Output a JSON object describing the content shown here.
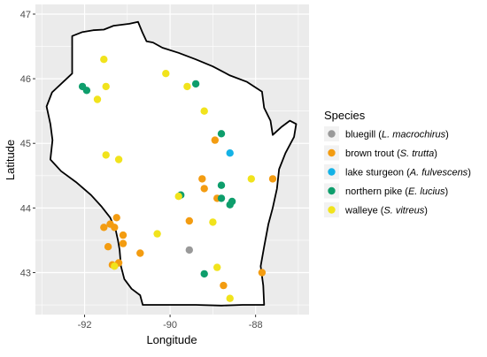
{
  "chart_data": {
    "type": "scatter",
    "title": "",
    "xlabel": "Longitude",
    "ylabel": "Latitude",
    "xlim": [
      -93.15,
      -86.75
    ],
    "ylim": [
      42.35,
      47.15
    ],
    "x_ticks": [
      -92,
      -90,
      -88
    ],
    "x_tick_labels": [
      "-92",
      "-90",
      "-88"
    ],
    "y_ticks": [
      43,
      44,
      45,
      46,
      47
    ],
    "y_tick_labels": [
      "43",
      "44",
      "45",
      "46",
      "47"
    ],
    "grid": true,
    "legend_placement": "right",
    "legend_title": "Species",
    "series": [
      {
        "name": "bluegill",
        "sci": "L. macrochirus",
        "color": "#999999",
        "points": [
          [
            -89.55,
            43.35
          ]
        ]
      },
      {
        "name": "brown trout",
        "sci": "S. trutta",
        "color": "#F39C11",
        "points": [
          [
            -91.25,
            43.85
          ],
          [
            -91.4,
            43.75
          ],
          [
            -91.55,
            43.7
          ],
          [
            -91.3,
            43.7
          ],
          [
            -91.1,
            43.58
          ],
          [
            -91.1,
            43.45
          ],
          [
            -91.45,
            43.4
          ],
          [
            -90.7,
            43.3
          ],
          [
            -91.2,
            43.15
          ],
          [
            -91.35,
            43.12
          ],
          [
            -89.55,
            43.8
          ],
          [
            -89.25,
            44.45
          ],
          [
            -89.2,
            44.3
          ],
          [
            -88.9,
            44.15
          ],
          [
            -88.95,
            45.05
          ],
          [
            -87.6,
            44.45
          ],
          [
            -87.85,
            43.0
          ],
          [
            -88.75,
            42.8
          ]
        ]
      },
      {
        "name": "lake sturgeon",
        "sci": "A. fulvescens",
        "color": "#14B2E6",
        "points": [
          [
            -88.6,
            44.85
          ]
        ]
      },
      {
        "name": "northern pike",
        "sci": "E. lucius",
        "color": "#0E9E6C",
        "points": [
          [
            -92.05,
            45.88
          ],
          [
            -91.95,
            45.82
          ],
          [
            -89.4,
            45.92
          ],
          [
            -88.8,
            45.15
          ],
          [
            -89.75,
            44.2
          ],
          [
            -88.8,
            44.35
          ],
          [
            -88.8,
            44.15
          ],
          [
            -88.55,
            44.1
          ],
          [
            -88.6,
            44.05
          ],
          [
            -89.2,
            42.98
          ]
        ]
      },
      {
        "name": "walleye",
        "sci": "S. vitreus",
        "color": "#F1E31C",
        "points": [
          [
            -91.55,
            46.3
          ],
          [
            -91.5,
            45.88
          ],
          [
            -91.7,
            45.68
          ],
          [
            -90.1,
            46.08
          ],
          [
            -89.6,
            45.88
          ],
          [
            -89.2,
            45.5
          ],
          [
            -91.5,
            44.82
          ],
          [
            -91.2,
            44.75
          ],
          [
            -89.8,
            44.18
          ],
          [
            -90.3,
            43.6
          ],
          [
            -89.0,
            43.78
          ],
          [
            -91.3,
            43.1
          ],
          [
            -88.9,
            43.08
          ],
          [
            -88.6,
            42.6
          ],
          [
            -88.1,
            44.45
          ]
        ]
      }
    ]
  }
}
